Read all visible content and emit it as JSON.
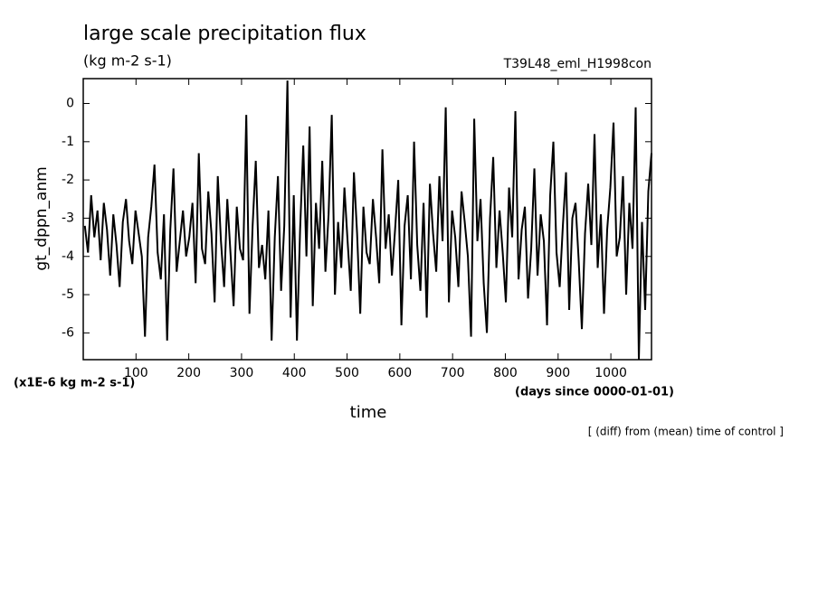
{
  "chart_data": {
    "type": "line",
    "title": "large scale precipitation flux",
    "subtitle": "(kg m-2 s-1)",
    "run_label": "T39L48_eml_H1998con",
    "y_label": "gt_dppn_anm",
    "y_unit": "(x1E-6 kg m-2 s-1)",
    "x_label": "time",
    "x_unit": "(days since 0000-01-01)",
    "note": "[ (diff) from (mean) time of control ]",
    "xlim": [
      0,
      1077
    ],
    "ylim": [
      -6.7,
      0.65
    ],
    "xticks": [
      100,
      200,
      300,
      400,
      500,
      600,
      700,
      800,
      900,
      1000
    ],
    "yticks": [
      0,
      -1,
      -2,
      -3,
      -4,
      -5,
      -6
    ],
    "series": [
      {
        "color": "#000000",
        "x": [
          3,
          9,
          15,
          21,
          27,
          33,
          39,
          45,
          51,
          57,
          63,
          69,
          75,
          81,
          87,
          93,
          99,
          105,
          111,
          117,
          123,
          129,
          135,
          141,
          147,
          153,
          159,
          165,
          171,
          177,
          183,
          189,
          195,
          201,
          207,
          213,
          219,
          225,
          231,
          237,
          243,
          249,
          255,
          261,
          267,
          273,
          279,
          285,
          291,
          297,
          303,
          309,
          315,
          321,
          327,
          333,
          339,
          345,
          351,
          357,
          363,
          369,
          375,
          381,
          387,
          393,
          399,
          405,
          411,
          417,
          423,
          429,
          435,
          441,
          447,
          453,
          459,
          465,
          471,
          477,
          483,
          489,
          495,
          501,
          507,
          513,
          519,
          525,
          531,
          537,
          543,
          549,
          555,
          561,
          567,
          573,
          579,
          585,
          591,
          597,
          603,
          609,
          615,
          621,
          627,
          633,
          639,
          645,
          651,
          657,
          663,
          669,
          675,
          681,
          687,
          693,
          699,
          705,
          711,
          717,
          723,
          729,
          735,
          741,
          747,
          753,
          759,
          765,
          771,
          777,
          783,
          789,
          795,
          801,
          807,
          813,
          819,
          825,
          831,
          837,
          843,
          849,
          855,
          861,
          867,
          873,
          879,
          885,
          891,
          897,
          903,
          909,
          915,
          921,
          927,
          933,
          939,
          945,
          951,
          957,
          963,
          969,
          975,
          981,
          987,
          993,
          999,
          1005,
          1011,
          1017,
          1023,
          1029,
          1035,
          1041,
          1047,
          1053,
          1059,
          1065,
          1071,
          1077
        ],
        "values": [
          -3.2,
          -3.9,
          -2.4,
          -3.5,
          -2.8,
          -4.1,
          -2.6,
          -3.3,
          -4.5,
          -2.9,
          -3.7,
          -4.8,
          -3.1,
          -2.5,
          -3.6,
          -4.2,
          -2.8,
          -3.4,
          -4.0,
          -6.1,
          -3.5,
          -2.7,
          -1.6,
          -3.9,
          -4.6,
          -2.9,
          -6.2,
          -3.3,
          -1.7,
          -4.4,
          -3.6,
          -2.8,
          -4.0,
          -3.5,
          -2.6,
          -4.7,
          -1.3,
          -3.8,
          -4.2,
          -2.3,
          -3.4,
          -5.2,
          -1.9,
          -3.6,
          -4.8,
          -2.5,
          -3.9,
          -5.3,
          -2.7,
          -3.8,
          -4.1,
          -0.3,
          -5.5,
          -3.2,
          -1.5,
          -4.3,
          -3.7,
          -4.6,
          -2.8,
          -6.2,
          -3.5,
          -1.9,
          -4.9,
          -3.2,
          0.6,
          -5.6,
          -2.4,
          -6.2,
          -3.3,
          -1.1,
          -4.0,
          -0.6,
          -5.3,
          -2.6,
          -3.8,
          -1.5,
          -4.4,
          -2.9,
          -0.3,
          -5.0,
          -3.1,
          -4.3,
          -2.2,
          -3.6,
          -4.9,
          -1.8,
          -3.4,
          -5.5,
          -2.7,
          -3.9,
          -4.2,
          -2.5,
          -3.5,
          -4.7,
          -1.2,
          -3.8,
          -2.9,
          -4.5,
          -3.3,
          -2.0,
          -5.8,
          -3.2,
          -2.4,
          -4.6,
          -1.0,
          -3.7,
          -4.9,
          -2.6,
          -5.6,
          -2.1,
          -3.4,
          -4.4,
          -1.9,
          -3.6,
          -0.1,
          -5.2,
          -2.8,
          -3.5,
          -4.8,
          -2.3,
          -3.1,
          -4.0,
          -6.1,
          -0.4,
          -3.6,
          -2.5,
          -4.7,
          -6.0,
          -3.0,
          -1.4,
          -4.3,
          -2.8,
          -3.9,
          -5.2,
          -2.2,
          -3.5,
          -0.2,
          -4.6,
          -3.3,
          -2.7,
          -5.1,
          -3.8,
          -1.7,
          -4.5,
          -2.9,
          -3.6,
          -5.8,
          -2.4,
          -1.0,
          -3.9,
          -4.8,
          -3.2,
          -1.8,
          -5.4,
          -3.0,
          -2.6,
          -4.1,
          -5.9,
          -3.4,
          -2.1,
          -3.7,
          -0.8,
          -4.3,
          -2.9,
          -5.5,
          -3.3,
          -2.2,
          -0.5,
          -4.0,
          -3.5,
          -1.9,
          -5.0,
          -2.6,
          -3.8,
          -0.1,
          -6.7,
          -3.1,
          -5.4,
          -2.3,
          -1.3
        ]
      }
    ]
  }
}
